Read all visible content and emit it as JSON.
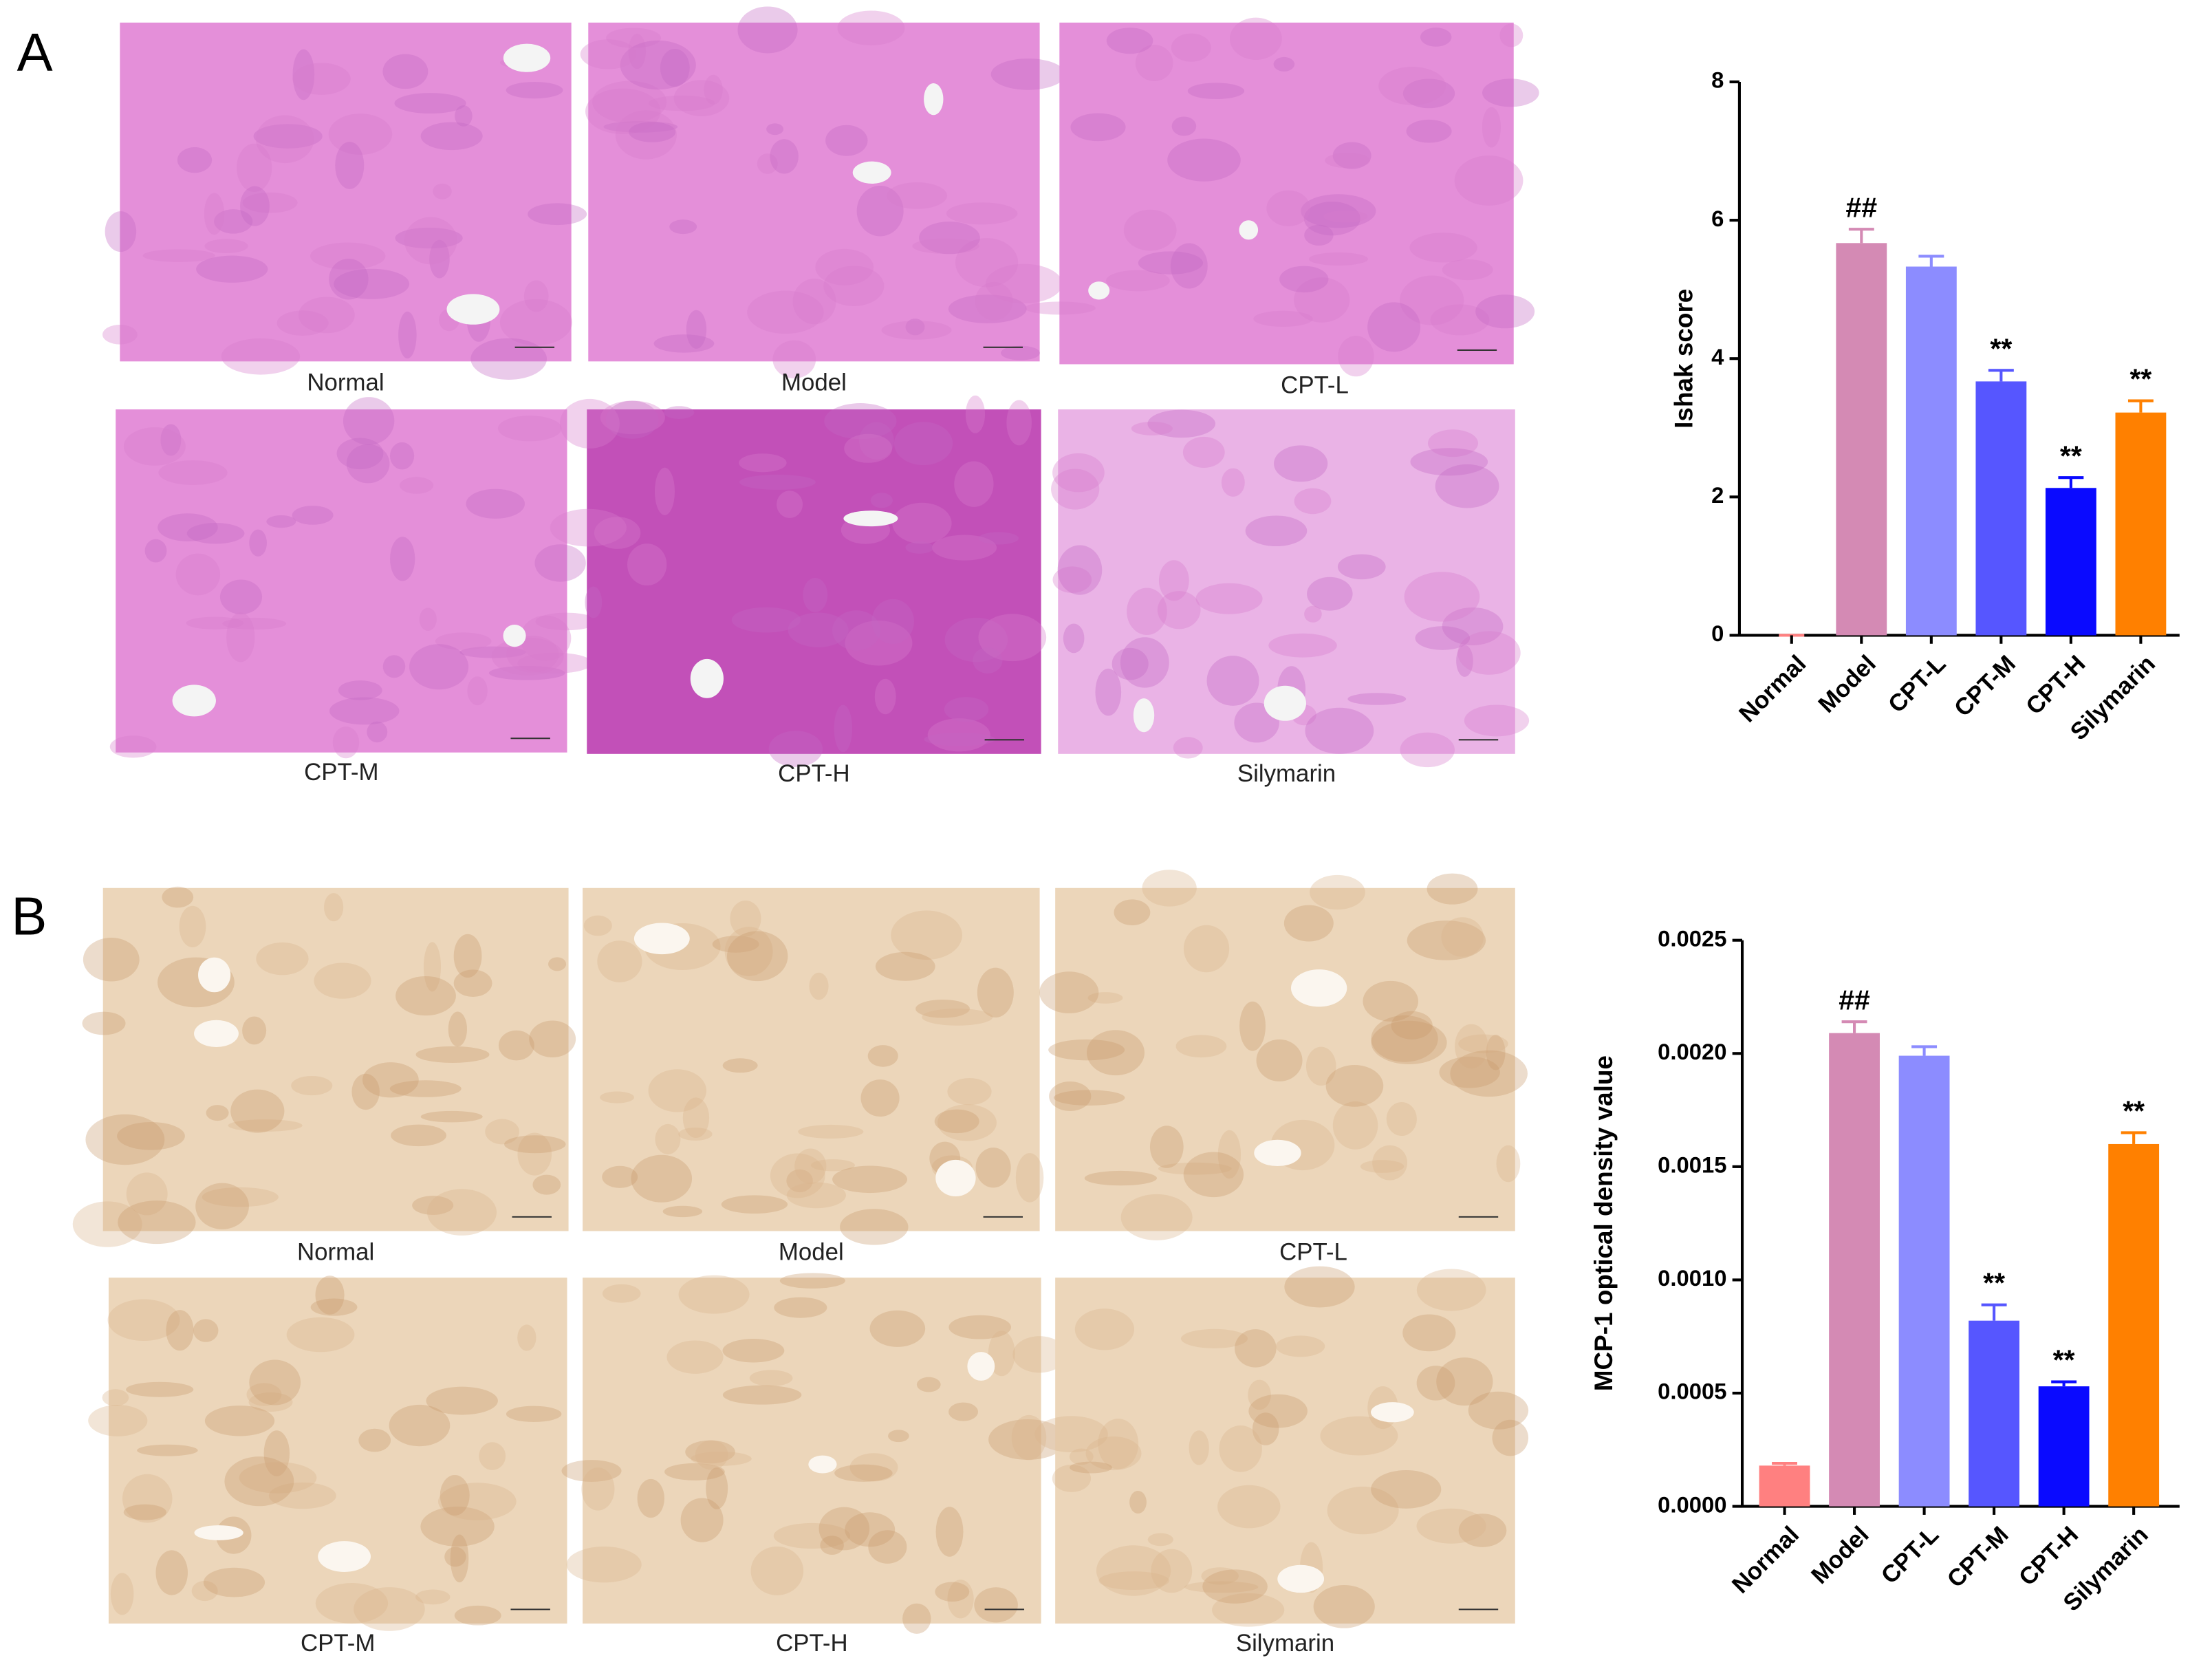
{
  "panels": [
    {
      "label": "A",
      "images": [
        "Normal",
        "Model",
        "CPT-L",
        "CPT-M",
        "CPT-H",
        "Silymarin"
      ]
    },
    {
      "label": "B",
      "images": [
        "Normal",
        "Model",
        "CPT-L",
        "CPT-M",
        "CPT-H",
        "Silymarin"
      ]
    }
  ],
  "chart_data": [
    {
      "type": "bar",
      "y_label": "Ishak score",
      "categories": [
        "Normal",
        "Model",
        "CPT-L",
        "CPT-M",
        "CPT-H",
        "Silymarin"
      ],
      "values": [
        0,
        5.67,
        5.33,
        3.67,
        2.13,
        3.22
      ],
      "errors": [
        0,
        0.2,
        0.15,
        0.16,
        0.15,
        0.17
      ],
      "annotations": [
        null,
        "##",
        null,
        "**",
        "**",
        "**"
      ],
      "colors": [
        "#ff8080",
        "#d48ab4",
        "#8c8cff",
        "#5656ff",
        "#0a0aff",
        "#ff8000"
      ],
      "ylim": [
        0,
        8
      ],
      "yticks": [
        0,
        2,
        4,
        6,
        8
      ]
    },
    {
      "type": "bar",
      "y_label": "MCP-1 optical density value",
      "categories": [
        "Normal",
        "Model",
        "CPT-L",
        "CPT-M",
        "CPT-H",
        "Silymarin"
      ],
      "values": [
        0.00018,
        0.00209,
        0.00199,
        0.00082,
        0.00053,
        0.0016
      ],
      "errors": [
        1e-05,
        5e-05,
        4e-05,
        7e-05,
        2e-05,
        5e-05
      ],
      "annotations": [
        null,
        "##",
        null,
        "**",
        "**",
        "**"
      ],
      "colors": [
        "#ff8080",
        "#d48ab4",
        "#8c8cff",
        "#5656ff",
        "#0a0aff",
        "#ff8000"
      ],
      "ylim": [
        0,
        0.0025
      ],
      "yticks": [
        {
          "value": 0,
          "label": "0.0000"
        },
        {
          "value": 0.0005,
          "label": "0.0005"
        },
        {
          "value": 0.001,
          "label": "0.0010"
        },
        {
          "value": 0.0015,
          "label": "0.0015"
        },
        {
          "value": 0.002,
          "label": "0.0020"
        },
        {
          "value": 0.0025,
          "label": "0.0025"
        }
      ]
    }
  ]
}
